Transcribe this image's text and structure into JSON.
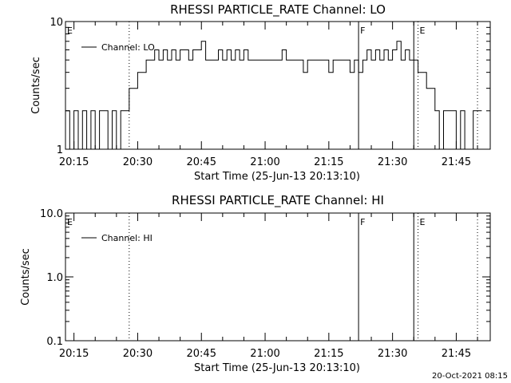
{
  "footer_timestamp": "20-Oct-2021 08:15",
  "chart_data": [
    {
      "type": "line",
      "title": "RHESSI PARTICLE_RATE Channel: LO",
      "xlabel": "Start Time (25-Jun-13 20:13:10)",
      "ylabel": "Counts/sec",
      "yscale": "log",
      "xlim": [
        "20:13",
        "21:53"
      ],
      "ylim": [
        1,
        10
      ],
      "x_tick_labels": [
        "20:15",
        "20:30",
        "20:45",
        "21:00",
        "21:15",
        "21:30",
        "21:45"
      ],
      "y_tick_labels": [
        {
          "v": 1,
          "label": "1"
        },
        {
          "v": 10,
          "label": "10"
        }
      ],
      "legend": {
        "position": "top-left",
        "label": "Channel: LO"
      },
      "markers": [
        {
          "t": "20:13",
          "label": "E",
          "style": "none"
        },
        {
          "t": "20:28",
          "label": "",
          "style": "dotted"
        },
        {
          "t": "21:22",
          "label": "F",
          "style": "solid"
        },
        {
          "t": "21:35",
          "label": "",
          "style": "solid"
        },
        {
          "t": "21:36",
          "label": "E",
          "style": "dotted"
        },
        {
          "t": "21:50",
          "label": "",
          "style": "dotted"
        }
      ],
      "series": [
        {
          "name": "Channel: LO",
          "points": [
            [
              "20:13",
              2
            ],
            [
              "20:14",
              1
            ],
            [
              "20:15",
              2
            ],
            [
              "20:16",
              1
            ],
            [
              "20:17",
              2
            ],
            [
              "20:18",
              1
            ],
            [
              "20:19",
              2
            ],
            [
              "20:20",
              1
            ],
            [
              "20:21",
              2
            ],
            [
              "20:22",
              2
            ],
            [
              "20:23",
              1
            ],
            [
              "20:24",
              2
            ],
            [
              "20:25",
              1
            ],
            [
              "20:26",
              2
            ],
            [
              "20:27",
              2
            ],
            [
              "20:28",
              3
            ],
            [
              "20:29",
              3
            ],
            [
              "20:30",
              4
            ],
            [
              "20:31",
              4
            ],
            [
              "20:32",
              5
            ],
            [
              "20:33",
              5
            ],
            [
              "20:34",
              6
            ],
            [
              "20:35",
              5
            ],
            [
              "20:36",
              6
            ],
            [
              "20:37",
              5
            ],
            [
              "20:38",
              6
            ],
            [
              "20:39",
              5
            ],
            [
              "20:40",
              6
            ],
            [
              "20:41",
              6
            ],
            [
              "20:42",
              5
            ],
            [
              "20:43",
              6
            ],
            [
              "20:44",
              6
            ],
            [
              "20:45",
              7
            ],
            [
              "20:46",
              5
            ],
            [
              "20:47",
              5
            ],
            [
              "20:48",
              5
            ],
            [
              "20:49",
              6
            ],
            [
              "20:50",
              5
            ],
            [
              "20:51",
              6
            ],
            [
              "20:52",
              5
            ],
            [
              "20:53",
              6
            ],
            [
              "20:54",
              5
            ],
            [
              "20:55",
              6
            ],
            [
              "20:56",
              5
            ],
            [
              "20:57",
              5
            ],
            [
              "20:58",
              5
            ],
            [
              "20:59",
              5
            ],
            [
              "21:00",
              5
            ],
            [
              "21:01",
              5
            ],
            [
              "21:02",
              5
            ],
            [
              "21:03",
              5
            ],
            [
              "21:04",
              6
            ],
            [
              "21:05",
              5
            ],
            [
              "21:06",
              5
            ],
            [
              "21:07",
              5
            ],
            [
              "21:08",
              5
            ],
            [
              "21:09",
              4
            ],
            [
              "21:10",
              5
            ],
            [
              "21:11",
              5
            ],
            [
              "21:12",
              5
            ],
            [
              "21:13",
              5
            ],
            [
              "21:14",
              5
            ],
            [
              "21:15",
              4
            ],
            [
              "21:16",
              5
            ],
            [
              "21:17",
              5
            ],
            [
              "21:18",
              5
            ],
            [
              "21:19",
              5
            ],
            [
              "21:20",
              4
            ],
            [
              "21:21",
              5
            ],
            [
              "21:22",
              4
            ],
            [
              "21:23",
              5
            ],
            [
              "21:24",
              6
            ],
            [
              "21:25",
              5
            ],
            [
              "21:26",
              6
            ],
            [
              "21:27",
              5
            ],
            [
              "21:28",
              6
            ],
            [
              "21:29",
              5
            ],
            [
              "21:30",
              6
            ],
            [
              "21:31",
              7
            ],
            [
              "21:32",
              5
            ],
            [
              "21:33",
              6
            ],
            [
              "21:34",
              5
            ],
            [
              "21:35",
              5
            ],
            [
              "21:36",
              4
            ],
            [
              "21:37",
              4
            ],
            [
              "21:38",
              3
            ],
            [
              "21:39",
              3
            ],
            [
              "21:40",
              2
            ],
            [
              "21:41",
              1
            ],
            [
              "21:42",
              2
            ],
            [
              "21:43",
              2
            ],
            [
              "21:44",
              2
            ],
            [
              "21:45",
              1
            ],
            [
              "21:46",
              2
            ],
            [
              "21:47",
              1
            ],
            [
              "21:48",
              1
            ],
            [
              "21:49",
              2
            ],
            [
              "21:50",
              2
            ]
          ]
        }
      ]
    },
    {
      "type": "line",
      "title": "RHESSI PARTICLE_RATE Channel: HI",
      "xlabel": "Start Time (25-Jun-13 20:13:10)",
      "ylabel": "Counts/sec",
      "yscale": "log",
      "xlim": [
        "20:13",
        "21:53"
      ],
      "ylim": [
        0.1,
        10
      ],
      "x_tick_labels": [
        "20:15",
        "20:30",
        "20:45",
        "21:00",
        "21:15",
        "21:30",
        "21:45"
      ],
      "y_tick_labels": [
        {
          "v": 0.1,
          "label": "0.1"
        },
        {
          "v": 1,
          "label": "1.0"
        },
        {
          "v": 10,
          "label": "10.0"
        }
      ],
      "legend": {
        "position": "top-left",
        "label": "Channel: HI"
      },
      "markers": [
        {
          "t": "20:13",
          "label": "E",
          "style": "none"
        },
        {
          "t": "20:28",
          "label": "",
          "style": "dotted"
        },
        {
          "t": "21:22",
          "label": "F",
          "style": "solid"
        },
        {
          "t": "21:35",
          "label": "",
          "style": "solid"
        },
        {
          "t": "21:36",
          "label": "E",
          "style": "dotted"
        },
        {
          "t": "21:50",
          "label": "",
          "style": "dotted"
        }
      ],
      "series": [
        {
          "name": "Channel: HI",
          "points": []
        }
      ]
    }
  ]
}
